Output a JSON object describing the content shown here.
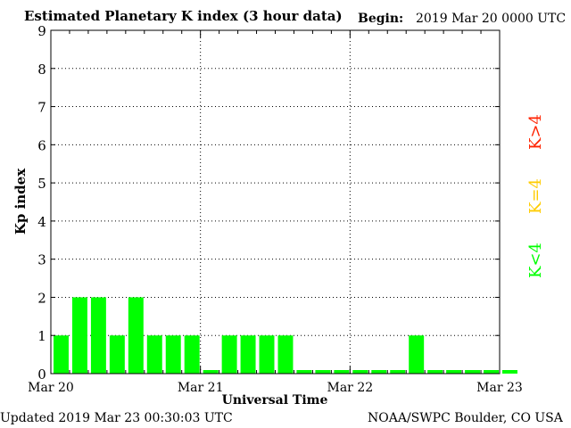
{
  "header": {
    "title": "Estimated Planetary K index (3 hour data)",
    "begin_label": "Begin:",
    "begin_value": "2019 Mar 20 0000 UTC"
  },
  "footer": {
    "updated": "Updated 2019 Mar 23 00:30:03 UTC",
    "credit": "NOAA/SWPC Boulder, CO USA"
  },
  "legend": {
    "low": "K<4",
    "mid": "K=4",
    "high": "K>4"
  },
  "colors": {
    "low": "#00ff00",
    "mid": "#ffcc00",
    "high": "#ff2200"
  },
  "chart_data": {
    "type": "bar",
    "title": "Estimated Planetary K index (3 hour data)",
    "xlabel": "Universal Time",
    "ylabel": "Kp index",
    "ylim": [
      0,
      9
    ],
    "yticks": [
      "0",
      "1",
      "2",
      "3",
      "4",
      "5",
      "6",
      "7",
      "8",
      "9"
    ],
    "xticks": [
      "Mar 20",
      "Mar 21",
      "Mar 22",
      "Mar 23"
    ],
    "interval_hours": 3,
    "values": [
      1,
      2,
      2,
      1,
      2,
      1,
      1,
      1,
      0,
      1,
      1,
      1,
      1,
      0,
      0,
      0,
      0,
      0,
      0,
      1,
      0,
      0,
      0,
      0,
      0
    ],
    "grid": true
  }
}
